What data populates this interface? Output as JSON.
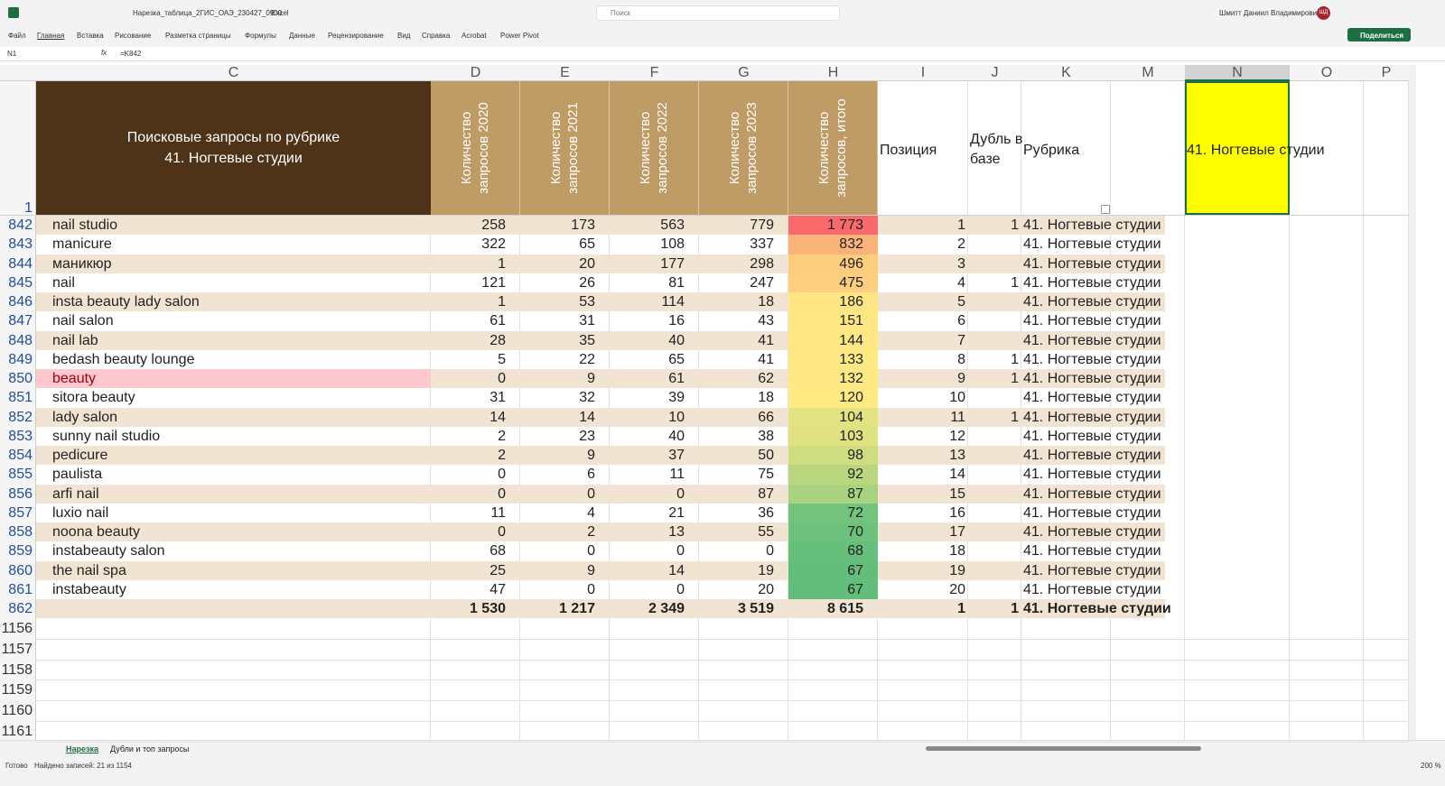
{
  "titlebar": {
    "file_name": "Нарезка_таблица_2ГИС_ОАЭ_230427_0900",
    "app": "Excel",
    "search": "Поиск",
    "user": "Шмитт Даниил Владимирович",
    "avatar": "ШД"
  },
  "menu": [
    "Файл",
    "Главная",
    "Вставка",
    "Рисование",
    "Разметка страницы",
    "Формулы",
    "Данные",
    "Рецензирование",
    "Вид",
    "Справка",
    "Acrobat",
    "Power Pivot"
  ],
  "share": "Поделиться",
  "formula_bar": {
    "cell": "N1",
    "fx": "fx",
    "formula": "=K842"
  },
  "columns": [
    "C",
    "D",
    "E",
    "F",
    "G",
    "H",
    "I",
    "J",
    "K",
    "M",
    "N",
    "O",
    "P"
  ],
  "header": {
    "row": "1",
    "title_lines": [
      "Поисковые запросы по рубрике",
      "41. Ногтевые студии"
    ],
    "counts": [
      [
        "Количество",
        "запросов 2020"
      ],
      [
        "Количество",
        "запросов 2021"
      ],
      [
        "Количество",
        "запросов 2022"
      ],
      [
        "Количество",
        "запросов 2023"
      ],
      [
        "Количество",
        "запросов, итого"
      ]
    ],
    "position": "Позиция",
    "dup_lines": [
      "Дубль в",
      "базе"
    ],
    "rubric": "Рубрика",
    "n1": "41. Ногтевые студии"
  },
  "heat_colors": [
    "#63be7b",
    "#ffeb84",
    "#f8696b"
  ],
  "rows": [
    {
      "n": "842",
      "query": "nail studio",
      "values": [
        "258",
        "173",
        "563",
        "779",
        "1 773"
      ],
      "position": "1",
      "dup": "1",
      "rubric": "41. Ногтевые студии"
    },
    {
      "n": "843",
      "query": "manicure",
      "values": [
        "322",
        "65",
        "108",
        "337",
        "832"
      ],
      "position": "2",
      "dup": null,
      "rubric": "41. Ногтевые студии"
    },
    {
      "n": "844",
      "query": "маникюр",
      "values": [
        "1",
        "20",
        "177",
        "298",
        "496"
      ],
      "position": "3",
      "dup": null,
      "rubric": "41. Ногтевые студии"
    },
    {
      "n": "845",
      "query": "nail",
      "values": [
        "121",
        "26",
        "81",
        "247",
        "475"
      ],
      "position": "4",
      "dup": "1",
      "rubric": "41. Ногтевые студии"
    },
    {
      "n": "846",
      "query": "insta beauty lady salon",
      "values": [
        "1",
        "53",
        "114",
        "18",
        "186"
      ],
      "position": "5",
      "dup": null,
      "rubric": "41. Ногтевые студии"
    },
    {
      "n": "847",
      "query": "nail salon",
      "values": [
        "61",
        "31",
        "16",
        "43",
        "151"
      ],
      "position": "6",
      "dup": null,
      "rubric": "41. Ногтевые студии"
    },
    {
      "n": "848",
      "query": "nail lab",
      "values": [
        "28",
        "35",
        "40",
        "41",
        "144"
      ],
      "position": "7",
      "dup": null,
      "rubric": "41. Ногтевые студии"
    },
    {
      "n": "849",
      "query": "bedash beauty lounge",
      "values": [
        "5",
        "22",
        "65",
        "41",
        "133"
      ],
      "position": "8",
      "dup": "1",
      "rubric": "41. Ногтевые студии"
    },
    {
      "n": "850",
      "query": "beauty",
      "values": [
        "0",
        "9",
        "61",
        "62",
        "132"
      ],
      "position": "9",
      "dup": "1",
      "rubric": "41. Ногтевые студии",
      "highlight": true
    },
    {
      "n": "851",
      "query": "sitora beauty",
      "values": [
        "31",
        "32",
        "39",
        "18",
        "120"
      ],
      "position": "10",
      "dup": null,
      "rubric": "41. Ногтевые студии"
    },
    {
      "n": "852",
      "query": "lady salon",
      "values": [
        "14",
        "14",
        "10",
        "66",
        "104"
      ],
      "position": "11",
      "dup": "1",
      "rubric": "41. Ногтевые студии"
    },
    {
      "n": "853",
      "query": "sunny nail studio",
      "values": [
        "2",
        "23",
        "40",
        "38",
        "103"
      ],
      "position": "12",
      "dup": null,
      "rubric": "41. Ногтевые студии"
    },
    {
      "n": "854",
      "query": "pedicure",
      "values": [
        "2",
        "9",
        "37",
        "50",
        "98"
      ],
      "position": "13",
      "dup": null,
      "rubric": "41. Ногтевые студии"
    },
    {
      "n": "855",
      "query": "paulista",
      "values": [
        "0",
        "6",
        "11",
        "75",
        "92"
      ],
      "position": "14",
      "dup": null,
      "rubric": "41. Ногтевые студии"
    },
    {
      "n": "856",
      "query": "arfi nail",
      "values": [
        "0",
        "0",
        "0",
        "87",
        "87"
      ],
      "position": "15",
      "dup": null,
      "rubric": "41. Ногтевые студии"
    },
    {
      "n": "857",
      "query": "luxio nail",
      "values": [
        "11",
        "4",
        "21",
        "36",
        "72"
      ],
      "position": "16",
      "dup": null,
      "rubric": "41. Ногтевые студии"
    },
    {
      "n": "858",
      "query": "noona beauty",
      "values": [
        "0",
        "2",
        "13",
        "55",
        "70"
      ],
      "position": "17",
      "dup": null,
      "rubric": "41. Ногтевые студии"
    },
    {
      "n": "859",
      "query": "instabeauty salon",
      "values": [
        "68",
        "0",
        "0",
        "0",
        "68"
      ],
      "position": "18",
      "dup": null,
      "rubric": "41. Ногтевые студии"
    },
    {
      "n": "860",
      "query": "the nail spa",
      "values": [
        "25",
        "9",
        "14",
        "19",
        "67"
      ],
      "position": "19",
      "dup": null,
      "rubric": "41. Ногтевые студии"
    },
    {
      "n": "861",
      "query": "instabeauty",
      "values": [
        "47",
        "0",
        "0",
        "20",
        "67"
      ],
      "position": "20",
      "dup": null,
      "rubric": "41. Ногтевые студии"
    }
  ],
  "total": {
    "n": "862",
    "values": [
      "1 530",
      "1 217",
      "2 349",
      "3 519",
      "8 615"
    ],
    "position": "1",
    "dup": "1",
    "rubric": "41. Ногтевые студии"
  },
  "empty_rows": [
    "1156",
    "1157",
    "1158",
    "1159",
    "1160",
    "1161"
  ],
  "sheets": [
    "Нарезка",
    "Дубли и топ запросы"
  ],
  "status": {
    "ready": "Готово",
    "found": "Найдено записей: 21 из 1154",
    "zoom": "200 %"
  }
}
